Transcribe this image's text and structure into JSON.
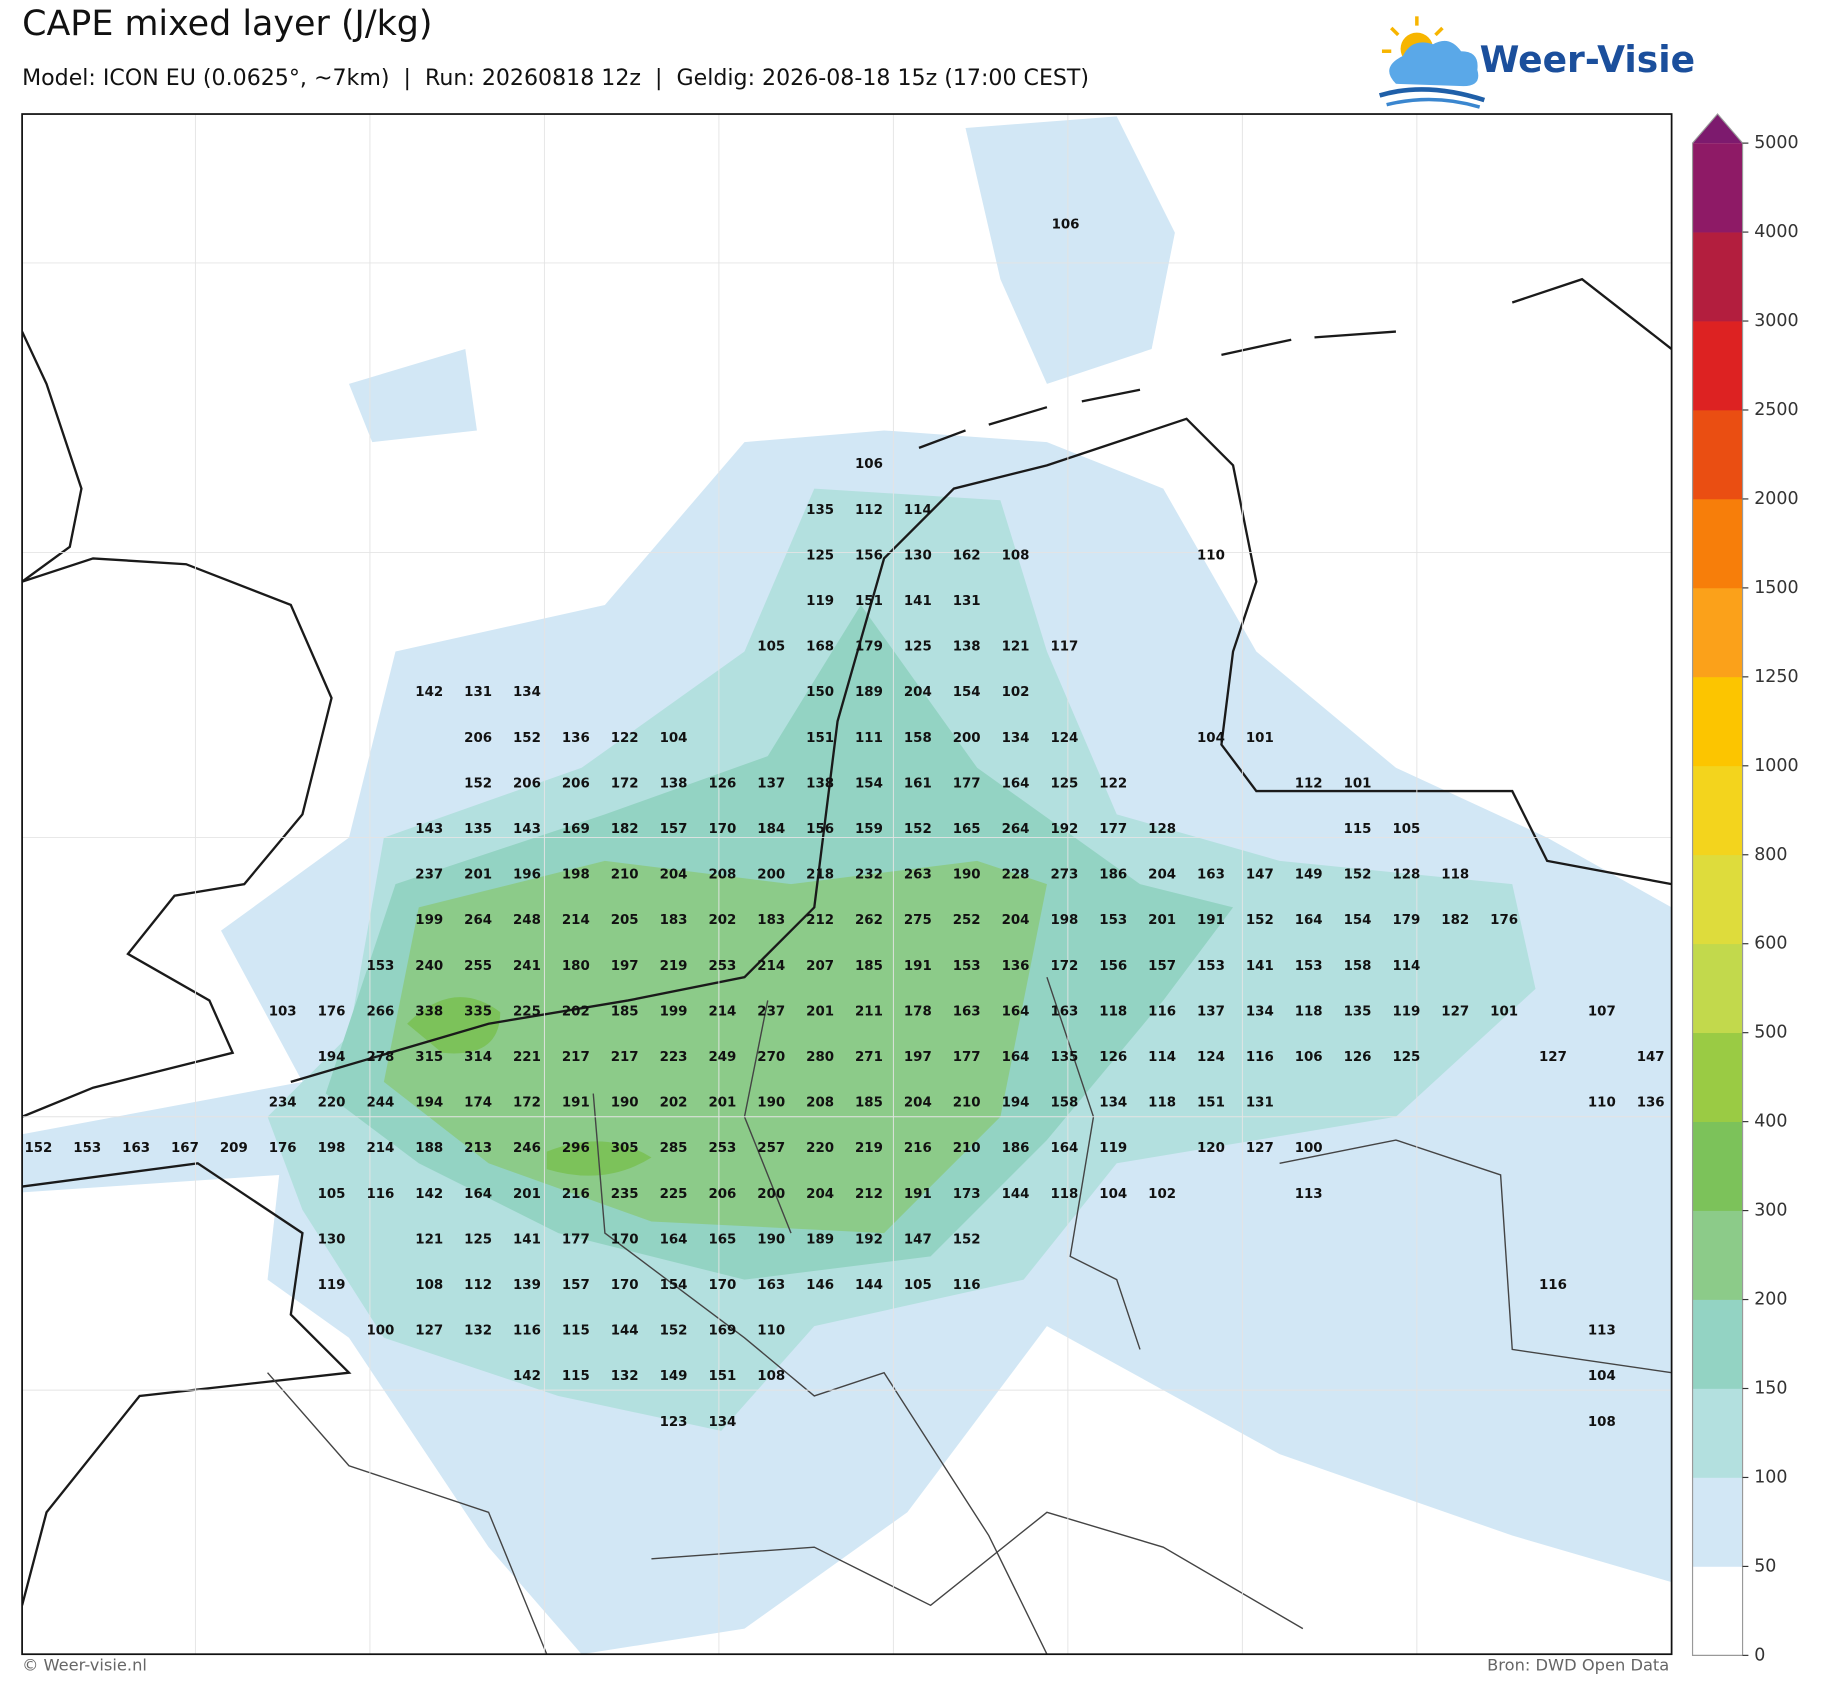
{
  "header": {
    "title": "CAPE mixed layer (J/kg)",
    "subtitle": "Model: ICON EU (0.0625°, ~7km)  |  Run: 20260818 12z  |  Geldig: 2026-08-18 15z (17:00 CEST)",
    "logo": "Weer-Visie"
  },
  "footer": {
    "left": "© Weer-visie.nl",
    "right": "Bron: DWD Open Data"
  },
  "map": {
    "top_label": 106,
    "grid_rows": [
      [
        null,
        null,
        null,
        null,
        null,
        null,
        null,
        null,
        null,
        null,
        null,
        null,
        null,
        null,
        null,
        null,
        null,
        106
      ],
      [
        null,
        null,
        null,
        null,
        null,
        null,
        null,
        null,
        null,
        null,
        null,
        null,
        null,
        null,
        null,
        null,
        135,
        112,
        114
      ],
      [
        null,
        null,
        null,
        null,
        null,
        null,
        null,
        null,
        null,
        null,
        null,
        null,
        null,
        null,
        null,
        null,
        125,
        156,
        130,
        162,
        108,
        null,
        null,
        null,
        110
      ],
      [
        null,
        null,
        null,
        null,
        null,
        null,
        null,
        null,
        null,
        null,
        null,
        null,
        null,
        null,
        null,
        null,
        119,
        151,
        141,
        131
      ],
      [
        null,
        null,
        null,
        null,
        null,
        null,
        null,
        null,
        null,
        null,
        null,
        null,
        null,
        null,
        null,
        105,
        168,
        179,
        125,
        138,
        121,
        117
      ],
      [
        null,
        null,
        null,
        null,
        null,
        null,
        null,
        null,
        142,
        131,
        134,
        null,
        null,
        null,
        null,
        null,
        150,
        189,
        204,
        154,
        102
      ],
      [
        null,
        null,
        null,
        null,
        null,
        null,
        null,
        null,
        null,
        206,
        152,
        136,
        122,
        104,
        null,
        null,
        151,
        111,
        158,
        200,
        134,
        124,
        null,
        null,
        104,
        101
      ],
      [
        null,
        null,
        null,
        null,
        null,
        null,
        null,
        null,
        null,
        152,
        206,
        206,
        172,
        138,
        126,
        137,
        138,
        154,
        161,
        177,
        164,
        125,
        122,
        null,
        null,
        null,
        112,
        101
      ],
      [
        null,
        null,
        null,
        null,
        null,
        null,
        null,
        null,
        143,
        135,
        143,
        169,
        182,
        157,
        170,
        184,
        156,
        159,
        152,
        165,
        264,
        192,
        177,
        128,
        null,
        null,
        null,
        115,
        105
      ],
      [
        null,
        null,
        null,
        null,
        null,
        null,
        null,
        null,
        237,
        201,
        196,
        198,
        210,
        204,
        208,
        200,
        218,
        232,
        263,
        190,
        228,
        273,
        186,
        204,
        163,
        147,
        149,
        152,
        128,
        118
      ],
      [
        null,
        null,
        null,
        null,
        null,
        null,
        null,
        null,
        199,
        264,
        248,
        214,
        205,
        183,
        202,
        183,
        212,
        262,
        275,
        252,
        204,
        198,
        153,
        201,
        191,
        152,
        164,
        154,
        179,
        182,
        176
      ],
      [
        null,
        null,
        null,
        null,
        null,
        null,
        null,
        153,
        240,
        255,
        241,
        180,
        197,
        219,
        253,
        214,
        207,
        185,
        191,
        153,
        136,
        172,
        156,
        157,
        153,
        141,
        153,
        158,
        114
      ],
      [
        null,
        null,
        null,
        null,
        null,
        103,
        176,
        266,
        338,
        335,
        225,
        202,
        185,
        199,
        214,
        237,
        201,
        211,
        178,
        163,
        164,
        163,
        118,
        116,
        137,
        134,
        118,
        135,
        119,
        127,
        101,
        null,
        107
      ],
      [
        null,
        null,
        null,
        null,
        null,
        null,
        194,
        278,
        315,
        314,
        221,
        217,
        217,
        223,
        249,
        270,
        280,
        271,
        197,
        177,
        164,
        135,
        126,
        114,
        124,
        116,
        106,
        126,
        125,
        null,
        null,
        127,
        null,
        147
      ],
      [
        null,
        null,
        null,
        null,
        null,
        234,
        220,
        244,
        194,
        174,
        172,
        191,
        190,
        202,
        201,
        190,
        208,
        185,
        204,
        210,
        194,
        158,
        134,
        118,
        151,
        131,
        null,
        null,
        null,
        null,
        null,
        null,
        110,
        136
      ],
      [
        152,
        153,
        163,
        167,
        209,
        176,
        198,
        214,
        188,
        213,
        246,
        296,
        305,
        285,
        253,
        257,
        220,
        219,
        216,
        210,
        186,
        164,
        119,
        null,
        120,
        127,
        100
      ],
      [
        null,
        null,
        null,
        null,
        null,
        null,
        105,
        116,
        142,
        164,
        201,
        216,
        235,
        225,
        206,
        200,
        204,
        212,
        191,
        173,
        144,
        118,
        104,
        102,
        null,
        null,
        113
      ],
      [
        null,
        null,
        null,
        null,
        null,
        null,
        130,
        null,
        121,
        125,
        141,
        177,
        170,
        164,
        165,
        190,
        189,
        192,
        147,
        152
      ],
      [
        null,
        null,
        null,
        null,
        null,
        null,
        119,
        null,
        108,
        112,
        139,
        157,
        170,
        154,
        170,
        163,
        146,
        144,
        105,
        116,
        null,
        null,
        null,
        null,
        null,
        null,
        null,
        null,
        null,
        null,
        null,
        116
      ],
      [
        null,
        null,
        null,
        null,
        null,
        null,
        null,
        100,
        127,
        132,
        116,
        115,
        144,
        152,
        169,
        110,
        null,
        null,
        null,
        null,
        null,
        null,
        null,
        null,
        null,
        null,
        null,
        null,
        null,
        null,
        null,
        null,
        113
      ],
      [
        null,
        null,
        null,
        null,
        null,
        null,
        null,
        null,
        null,
        null,
        142,
        115,
        132,
        149,
        151,
        108,
        null,
        null,
        null,
        null,
        null,
        null,
        null,
        null,
        null,
        null,
        null,
        null,
        null,
        null,
        null,
        null,
        104
      ],
      [
        null,
        null,
        null,
        null,
        null,
        null,
        null,
        null,
        null,
        null,
        null,
        null,
        null,
        123,
        134,
        null,
        null,
        null,
        null,
        null,
        null,
        null,
        null,
        null,
        null,
        null,
        null,
        null,
        null,
        null,
        null,
        null,
        108
      ]
    ]
  },
  "colorbar": {
    "ticks": [
      0,
      50,
      100,
      150,
      200,
      300,
      400,
      500,
      600,
      800,
      1000,
      1250,
      1500,
      2000,
      2500,
      3000,
      4000,
      5000
    ],
    "colors": [
      "#ffffff",
      "#d2e7f5",
      "#b3e0df",
      "#93d3c3",
      "#8ccb89",
      "#7cc25a",
      "#9acb44",
      "#c2d94c",
      "#dedc3c",
      "#f3d41d",
      "#fcc500",
      "#fba11a",
      "#f77e0a",
      "#ea4e12",
      "#dd2222",
      "#b31e3e",
      "#8e1a66"
    ],
    "extend_color": "#7d1a6e"
  }
}
